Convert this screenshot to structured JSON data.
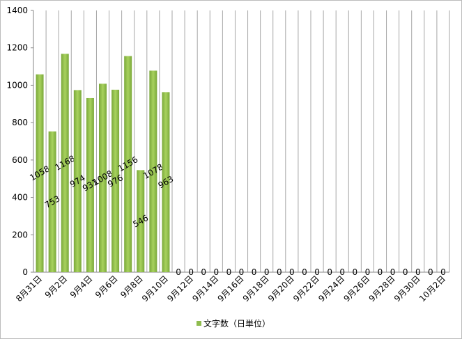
{
  "chart_data": {
    "type": "bar",
    "categories": [
      "8月31日",
      null,
      "9月2日",
      null,
      "9月4日",
      null,
      "9月6日",
      null,
      "9月8日",
      null,
      "9月10日",
      null,
      "9月12日",
      null,
      "9月14日",
      null,
      "9月16日",
      null,
      "9月18日",
      null,
      "9月20日",
      null,
      "9月22日",
      null,
      "9月24日",
      null,
      "9月26日",
      null,
      "9月28日",
      null,
      "9月30日",
      null,
      "10月2日"
    ],
    "series": [
      {
        "name": "文字数（日単位）",
        "color": "#8fbc4f",
        "values": [
          1058,
          753,
          1168,
          974,
          931,
          1008,
          976,
          1156,
          546,
          1078,
          963,
          0,
          0,
          0,
          0,
          0,
          0,
          0,
          0,
          0,
          0,
          0,
          0,
          0,
          0,
          0,
          0,
          0,
          0,
          0,
          0,
          0,
          0
        ]
      }
    ],
    "ylim": [
      0,
      1400
    ],
    "yticks": [
      0,
      200,
      400,
      600,
      800,
      1000,
      1200,
      1400
    ],
    "grid": "x",
    "legend": "bottom"
  }
}
